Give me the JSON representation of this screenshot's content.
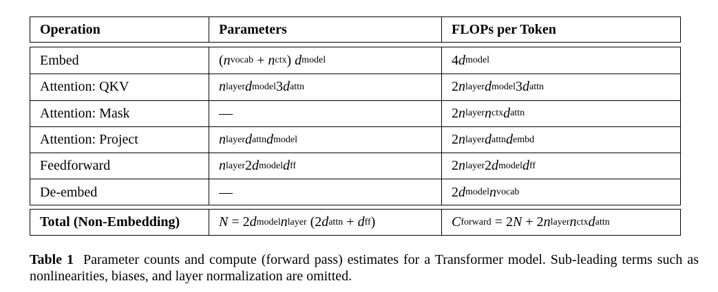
{
  "table": {
    "headers": [
      "Operation",
      "Parameters",
      "FLOPs per Token"
    ],
    "rows": [
      {
        "operation": "Embed",
        "parameters": "(n_{vocab} + n_{ctx}) d_{model}",
        "flops": "4d_{model}"
      },
      {
        "operation": "Attention: QKV",
        "parameters": "n_{layer}d_{model}3d_{attn}",
        "flops": "2n_{layer}d_{model}3d_{attn}"
      },
      {
        "operation": "Attention: Mask",
        "parameters": "—",
        "flops": "2n_{layer}n_{ctx}d_{attn}"
      },
      {
        "operation": "Attention: Project",
        "parameters": "n_{layer}d_{attn}d_{model}",
        "flops": "2n_{layer}d_{attn}d_{embd}"
      },
      {
        "operation": "Feedforward",
        "parameters": "n_{layer}2d_{model}d_{ff}",
        "flops": "2n_{layer}2d_{model}d_{ff}"
      },
      {
        "operation": "De-embed",
        "parameters": "—",
        "flops": "2d_{model}n_{vocab}"
      }
    ],
    "total": {
      "operation": "Total (Non-Embedding)",
      "parameters": "N = 2d_{model}n_{layer} (2d_{attn} + d_{ff})",
      "flops": "C_{forward} = 2N + 2n_{layer}n_{ctx}d_{attn}"
    }
  },
  "caption": {
    "label": "Table 1",
    "text": "Parameter counts and compute (forward pass) estimates for a Transformer model. Sub-leading terms such as nonlinearities, biases, and layer normalization are omitted."
  }
}
